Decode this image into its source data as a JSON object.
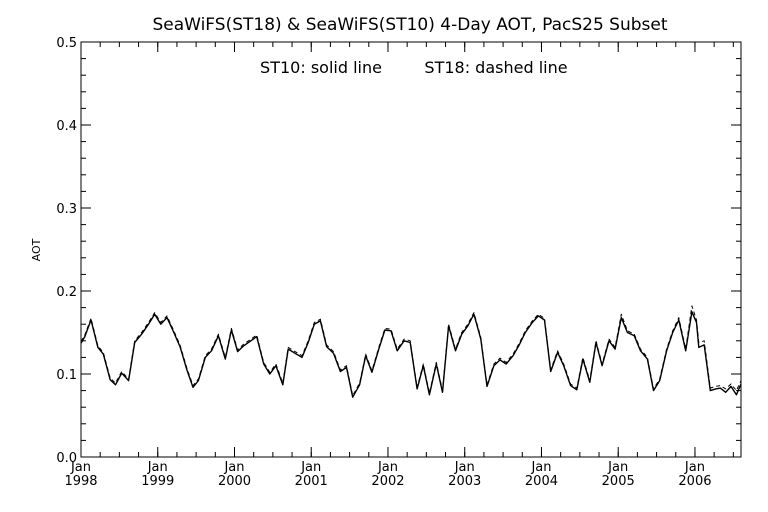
{
  "chart_data": {
    "type": "line",
    "title": "SeaWiFS(ST18) & SeaWiFS(ST10) 4-Day AOT, PacS25 Subset",
    "annotation_left": "ST10: solid line",
    "annotation_right": "ST18: dashed line",
    "xlabel": "",
    "ylabel": "AOT",
    "ylim": [
      0.0,
      0.5
    ],
    "xlim": [
      1998.0,
      2006.6
    ],
    "y_ticks": [
      "0.0",
      "0.1",
      "0.2",
      "0.3",
      "0.4",
      "0.5"
    ],
    "x_ticks": [
      {
        "month": "Jan",
        "year": "1998"
      },
      {
        "month": "Jan",
        "year": "1999"
      },
      {
        "month": "Jan",
        "year": "2000"
      },
      {
        "month": "Jan",
        "year": "2001"
      },
      {
        "month": "Jan",
        "year": "2002"
      },
      {
        "month": "Jan",
        "year": "2003"
      },
      {
        "month": "Jan",
        "year": "2004"
      },
      {
        "month": "Jan",
        "year": "2005"
      },
      {
        "month": "Jan",
        "year": "2006"
      }
    ],
    "grid": false,
    "series": [
      {
        "name": "ST10",
        "style": "solid",
        "x": [
          1998.0,
          1998.05,
          1998.13,
          1998.22,
          1998.29,
          1998.38,
          1998.45,
          1998.53,
          1998.62,
          1998.7,
          1998.79,
          1998.88,
          1998.96,
          1999.04,
          1999.12,
          1999.2,
          1999.29,
          1999.38,
          1999.46,
          1999.53,
          1999.62,
          1999.7,
          1999.79,
          1999.88,
          1999.96,
          2000.04,
          2000.12,
          2000.2,
          2000.29,
          2000.38,
          2000.46,
          2000.54,
          2000.63,
          2000.7,
          2000.79,
          2000.88,
          2000.96,
          2001.04,
          2001.12,
          2001.2,
          2001.29,
          2001.38,
          2001.46,
          2001.54,
          2001.63,
          2001.71,
          2001.79,
          2001.88,
          2001.96,
          2002.04,
          2002.12,
          2002.21,
          2002.29,
          2002.38,
          2002.46,
          2002.54,
          2002.63,
          2002.71,
          2002.79,
          2002.88,
          2002.96,
          2003.04,
          2003.12,
          2003.21,
          2003.29,
          2003.38,
          2003.46,
          2003.54,
          2003.63,
          2003.71,
          2003.79,
          2003.88,
          2003.96,
          2004.04,
          2004.12,
          2004.21,
          2004.29,
          2004.38,
          2004.46,
          2004.54,
          2004.63,
          2004.71,
          2004.79,
          2004.88,
          2004.96,
          2005.04,
          2005.12,
          2005.21,
          2005.29,
          2005.38,
          2005.46,
          2005.54,
          2005.63,
          2005.71,
          2005.79,
          2005.88,
          2005.96,
          2006.02,
          2006.05,
          2006.12,
          2006.2,
          2006.27,
          2006.33,
          2006.4,
          2006.47,
          2006.54,
          2006.6
        ],
        "y": [
          0.137,
          0.145,
          0.165,
          0.132,
          0.124,
          0.093,
          0.087,
          0.101,
          0.092,
          0.138,
          0.148,
          0.16,
          0.172,
          0.16,
          0.168,
          0.152,
          0.133,
          0.105,
          0.084,
          0.092,
          0.12,
          0.128,
          0.146,
          0.118,
          0.153,
          0.127,
          0.134,
          0.139,
          0.145,
          0.112,
          0.1,
          0.11,
          0.087,
          0.13,
          0.125,
          0.12,
          0.138,
          0.16,
          0.164,
          0.133,
          0.125,
          0.103,
          0.108,
          0.072,
          0.087,
          0.122,
          0.102,
          0.13,
          0.153,
          0.152,
          0.128,
          0.14,
          0.138,
          0.082,
          0.11,
          0.075,
          0.112,
          0.078,
          0.158,
          0.128,
          0.148,
          0.158,
          0.172,
          0.142,
          0.085,
          0.11,
          0.117,
          0.112,
          0.122,
          0.135,
          0.15,
          0.162,
          0.17,
          0.165,
          0.103,
          0.126,
          0.11,
          0.086,
          0.081,
          0.118,
          0.09,
          0.138,
          0.11,
          0.14,
          0.13,
          0.168,
          0.15,
          0.146,
          0.128,
          0.118,
          0.08,
          0.092,
          0.128,
          0.15,
          0.165,
          0.128,
          0.175,
          0.162,
          0.132,
          0.135,
          0.08,
          0.082,
          0.083,
          0.078,
          0.085,
          0.075,
          0.088
        ]
      },
      {
        "name": "ST18",
        "style": "dashed",
        "x": [
          1998.0,
          1998.05,
          1998.13,
          1998.22,
          1998.29,
          1998.38,
          1998.45,
          1998.53,
          1998.62,
          1998.7,
          1998.79,
          1998.88,
          1998.96,
          1999.04,
          1999.12,
          1999.2,
          1999.29,
          1999.38,
          1999.46,
          1999.53,
          1999.62,
          1999.7,
          1999.79,
          1999.88,
          1999.96,
          2000.04,
          2000.12,
          2000.2,
          2000.29,
          2000.38,
          2000.46,
          2000.54,
          2000.63,
          2000.7,
          2000.79,
          2000.88,
          2000.96,
          2001.04,
          2001.12,
          2001.2,
          2001.29,
          2001.38,
          2001.46,
          2001.54,
          2001.63,
          2001.71,
          2001.79,
          2001.88,
          2001.96,
          2002.04,
          2002.12,
          2002.21,
          2002.29,
          2002.38,
          2002.46,
          2002.54,
          2002.63,
          2002.71,
          2002.79,
          2002.88,
          2002.96,
          2003.04,
          2003.12,
          2003.21,
          2003.29,
          2003.38,
          2003.46,
          2003.54,
          2003.63,
          2003.71,
          2003.79,
          2003.88,
          2003.96,
          2004.04,
          2004.12,
          2004.21,
          2004.29,
          2004.38,
          2004.46,
          2004.54,
          2004.63,
          2004.71,
          2004.79,
          2004.88,
          2004.96,
          2005.04,
          2005.12,
          2005.21,
          2005.29,
          2005.38,
          2005.46,
          2005.54,
          2005.63,
          2005.71,
          2005.79,
          2005.88,
          2005.96,
          2006.02,
          2006.05,
          2006.12,
          2006.2,
          2006.27,
          2006.33,
          2006.4,
          2006.47,
          2006.54,
          2006.6
        ],
        "y": [
          0.139,
          0.147,
          0.167,
          0.134,
          0.126,
          0.095,
          0.089,
          0.103,
          0.094,
          0.14,
          0.15,
          0.162,
          0.174,
          0.162,
          0.17,
          0.154,
          0.135,
          0.107,
          0.086,
          0.094,
          0.122,
          0.13,
          0.148,
          0.12,
          0.155,
          0.129,
          0.136,
          0.141,
          0.147,
          0.114,
          0.102,
          0.112,
          0.089,
          0.132,
          0.127,
          0.122,
          0.14,
          0.162,
          0.166,
          0.135,
          0.127,
          0.105,
          0.11,
          0.074,
          0.089,
          0.124,
          0.104,
          0.132,
          0.155,
          0.154,
          0.13,
          0.142,
          0.14,
          0.084,
          0.112,
          0.077,
          0.114,
          0.08,
          0.16,
          0.13,
          0.15,
          0.16,
          0.174,
          0.144,
          0.087,
          0.112,
          0.119,
          0.114,
          0.124,
          0.137,
          0.152,
          0.164,
          0.172,
          0.167,
          0.105,
          0.128,
          0.112,
          0.088,
          0.083,
          0.12,
          0.092,
          0.14,
          0.112,
          0.142,
          0.132,
          0.172,
          0.152,
          0.148,
          0.13,
          0.12,
          0.082,
          0.094,
          0.13,
          0.152,
          0.168,
          0.13,
          0.182,
          0.165,
          0.138,
          0.14,
          0.083,
          0.085,
          0.086,
          0.082,
          0.088,
          0.08,
          0.092
        ]
      }
    ]
  }
}
